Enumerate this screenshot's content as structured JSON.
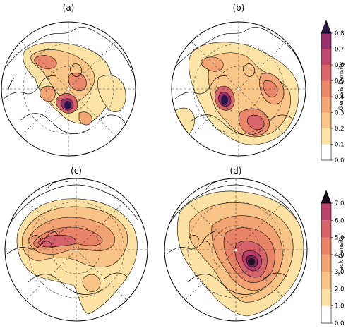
{
  "panels": [
    {
      "id": "a",
      "label": "(a)"
    },
    {
      "id": "b",
      "label": "(b)"
    },
    {
      "id": "c",
      "label": "(c)"
    },
    {
      "id": "d",
      "label": "(d)"
    }
  ],
  "colorbars": {
    "genesis": {
      "title": "Genesis Density",
      "ticks": [
        "0.0",
        "0.1",
        "0.2",
        "0.3",
        "0.4",
        "0.5",
        "0.6",
        "0.7",
        "0.8"
      ],
      "colors": [
        "#ffffff",
        "#fbe3a6",
        "#f8c688",
        "#f2a676",
        "#e9876a",
        "#d9666a",
        "#bf4a6d",
        "#98306e",
        "#6a1e66",
        "#2a1547"
      ]
    },
    "track": {
      "title": "Track Density",
      "ticks": [
        "0.0",
        "1.0",
        "2.0",
        "3.0",
        "4.0",
        "5.0",
        "6.0",
        "7.0"
      ],
      "colors": [
        "#ffffff",
        "#fbe1a3",
        "#f7c386",
        "#f1a374",
        "#e78468",
        "#d6626a",
        "#b8426c",
        "#7d2259",
        "#1c0f1e"
      ]
    }
  },
  "palette": {
    "ocean": "#ffffff",
    "coast": "#000000",
    "grid": "#333333"
  }
}
